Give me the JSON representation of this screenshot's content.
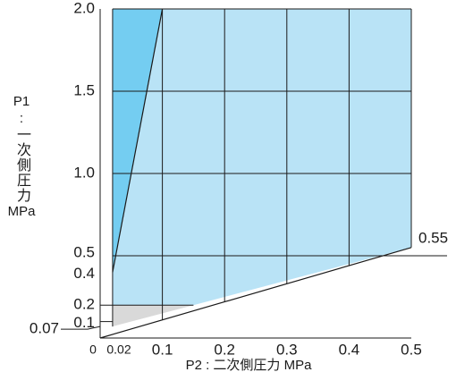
{
  "chart_data": {
    "type": "area",
    "xlabel": "P2 : 二次側圧力 MPa",
    "ylabel_top": "P1",
    "ylabel_sep": ":",
    "ylabel_main": "一次側圧力",
    "ylabel_unit": "MPa",
    "xlim": [
      0,
      0.5
    ],
    "ylim": [
      0,
      2.0
    ],
    "x_ticks": [
      {
        "value": 0,
        "label": "0",
        "size": "small"
      },
      {
        "value": 0.02,
        "label": "0.02",
        "size": "small"
      },
      {
        "value": 0.1,
        "label": "0.1",
        "size": "normal"
      },
      {
        "value": 0.2,
        "label": "0.2",
        "size": "normal"
      },
      {
        "value": 0.3,
        "label": "0.3",
        "size": "normal"
      },
      {
        "value": 0.4,
        "label": "0.4",
        "size": "normal"
      },
      {
        "value": 0.5,
        "label": "0.5",
        "size": "normal"
      }
    ],
    "y_ticks": [
      {
        "value": 2.0,
        "label": "2.0"
      },
      {
        "value": 1.5,
        "label": "1.5"
      },
      {
        "value": 1.0,
        "label": "1.0"
      },
      {
        "value": 0.5,
        "label": "0.5"
      },
      {
        "value": 0.4,
        "label": "0.4"
      },
      {
        "value": 0.2,
        "label": "0.2"
      },
      {
        "value": 0.1,
        "label": "0.1"
      }
    ],
    "y_callout": {
      "value": 0.07,
      "label": "0.07"
    },
    "right_callout": {
      "x": 0.5,
      "y": 0.55,
      "label": "0.55"
    },
    "grid_x": [
      0.1,
      0.2,
      0.3,
      0.4,
      0.5
    ],
    "grid_y": [
      0.5,
      1.0,
      1.5,
      2.0
    ],
    "regions": [
      {
        "name": "usable-range",
        "color": "#b9e3f6",
        "points": [
          [
            0.02,
            0.2
          ],
          [
            0.15,
            0.2
          ],
          [
            0.5,
            0.55
          ],
          [
            0.5,
            2.0
          ],
          [
            0.02,
            2.0
          ]
        ]
      },
      {
        "name": "upper-left-range",
        "color": "#74cdf1",
        "points": [
          [
            0.02,
            2.0
          ],
          [
            0.1,
            2.0
          ],
          [
            0.02,
            0.4
          ]
        ]
      },
      {
        "name": "gray-range",
        "color": "#d9d9d9",
        "points": [
          [
            0.02,
            0.07
          ],
          [
            0.15,
            0.2
          ],
          [
            0.02,
            0.2
          ]
        ]
      }
    ],
    "boundary_lines": [
      {
        "name": "lower-boundary",
        "points": [
          [
            0,
            0
          ],
          [
            0.5,
            0.55
          ]
        ]
      },
      {
        "name": "upper-boundary",
        "points": [
          [
            0.02,
            0.4
          ],
          [
            0.1,
            2.0
          ]
        ]
      }
    ],
    "colors": {
      "light": "#b9e3f6",
      "dark": "#74cdf1",
      "gray": "#d9d9d9",
      "line": "#1a1a1a"
    }
  }
}
